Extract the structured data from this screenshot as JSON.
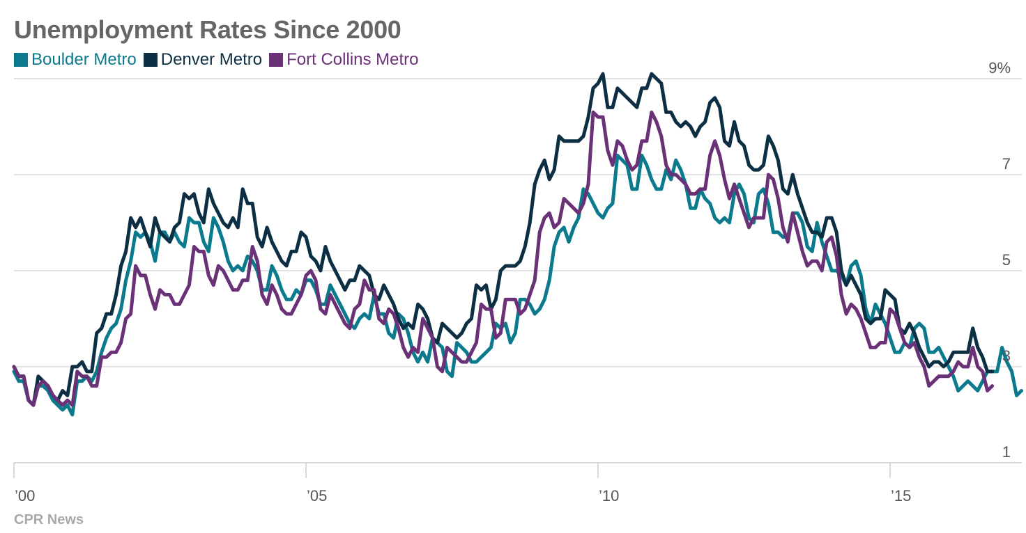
{
  "chart_data": {
    "type": "line",
    "title": "Unemployment Rates Since 2000",
    "source": "CPR News",
    "x_start": 2000.0,
    "x_step": 0.0833333,
    "xlim": [
      2000,
      2016.85
    ],
    "ylim": [
      1,
      9
    ],
    "y_ticks": [
      {
        "value": 9,
        "label": "9%"
      },
      {
        "value": 7,
        "label": "7"
      },
      {
        "value": 5,
        "label": "5"
      },
      {
        "value": 3,
        "label": "3"
      },
      {
        "value": 1,
        "label": "1"
      }
    ],
    "x_ticks": [
      {
        "value": 2000,
        "label": "’00"
      },
      {
        "value": 2005,
        "label": "’05"
      },
      {
        "value": 2010,
        "label": "’10"
      },
      {
        "value": 2015,
        "label": "’15"
      }
    ],
    "grid": true,
    "legend_position": "top-left",
    "series": [
      {
        "name": "Boulder Metro",
        "color": "#0a7a8c",
        "values": [
          2.9,
          2.7,
          2.7,
          2.3,
          2.2,
          2.6,
          2.6,
          2.5,
          2.3,
          2.2,
          2.1,
          2.2,
          2.0,
          2.7,
          2.7,
          2.8,
          2.7,
          2.9,
          3.3,
          3.6,
          3.8,
          3.9,
          4.2,
          4.8,
          5.2,
          5.8,
          5.7,
          5.8,
          5.6,
          5.2,
          5.8,
          5.8,
          5.6,
          5.8,
          5.6,
          5.5,
          6.1,
          6.0,
          6.0,
          5.6,
          5.4,
          6.1,
          5.9,
          5.6,
          5.2,
          5.0,
          5.1,
          5.0,
          5.3,
          5.2,
          5.0,
          4.6,
          4.6,
          5.1,
          4.9,
          4.6,
          4.4,
          4.4,
          4.6,
          4.5,
          4.8,
          4.8,
          4.6,
          4.3,
          4.3,
          4.7,
          4.5,
          4.3,
          4.1,
          3.9,
          3.8,
          4.0,
          4.1,
          4.0,
          4.5,
          4.1,
          4.1,
          3.7,
          3.6,
          4.1,
          4.0,
          3.7,
          3.3,
          3.1,
          3.3,
          3.1,
          3.6,
          3.5,
          3.4,
          2.9,
          2.8,
          3.5,
          3.4,
          3.3,
          3.1,
          3.1,
          3.2,
          3.3,
          3.4,
          3.9,
          3.8,
          3.9,
          3.5,
          3.7,
          4.4,
          4.4,
          4.3,
          4.1,
          4.2,
          4.4,
          4.8,
          5.5,
          5.8,
          5.9,
          5.6,
          5.9,
          6.1,
          6.7,
          6.6,
          6.4,
          6.2,
          6.1,
          6.3,
          6.4,
          7.4,
          7.3,
          7.2,
          6.7,
          6.7,
          7.4,
          7.2,
          6.9,
          6.7,
          6.7,
          7.1,
          6.9,
          7.3,
          7.1,
          6.8,
          6.3,
          6.3,
          6.7,
          6.5,
          6.4,
          6.1,
          6.0,
          6.1,
          6.0,
          6.6,
          6.8,
          6.6,
          6.1,
          6.0,
          6.6,
          6.7,
          6.4,
          5.8,
          5.8,
          5.7,
          5.7,
          6.2,
          6.2,
          6.0,
          5.5,
          5.4,
          6.0,
          5.6,
          5.3,
          5.0,
          5.0,
          4.9,
          4.7,
          5.1,
          5.2,
          4.9,
          4.2,
          3.9,
          4.3,
          4.1,
          3.9,
          3.6,
          3.3,
          3.3,
          3.5,
          3.4,
          3.8,
          3.9,
          3.8,
          3.3,
          3.3,
          3.4,
          3.2,
          3.0,
          2.8,
          2.5,
          2.6,
          2.7,
          2.6,
          2.5,
          2.7,
          2.9,
          2.9,
          2.9,
          3.4,
          3.1,
          2.9,
          2.4,
          2.5
        ]
      },
      {
        "name": "Denver Metro",
        "color": "#0d2f44",
        "values": [
          3.0,
          2.8,
          2.8,
          2.3,
          2.2,
          2.8,
          2.7,
          2.6,
          2.4,
          2.3,
          2.5,
          2.4,
          3.0,
          3.0,
          3.1,
          2.9,
          2.9,
          3.7,
          3.8,
          4.1,
          4.1,
          4.5,
          5.1,
          5.4,
          6.1,
          5.9,
          6.1,
          5.8,
          5.5,
          6.1,
          5.8,
          5.7,
          5.6,
          5.9,
          6.0,
          6.6,
          6.5,
          6.6,
          6.2,
          6.0,
          6.7,
          6.4,
          6.2,
          6.0,
          5.9,
          6.1,
          5.9,
          6.7,
          6.4,
          6.4,
          5.7,
          5.5,
          5.9,
          5.6,
          5.4,
          5.2,
          5.1,
          5.4,
          5.4,
          5.8,
          5.7,
          5.3,
          5.2,
          5.0,
          5.5,
          5.2,
          5.0,
          4.8,
          4.6,
          4.8,
          4.8,
          5.1,
          5.0,
          4.9,
          4.5,
          4.4,
          4.7,
          4.5,
          4.3,
          4.0,
          3.8,
          3.9,
          3.8,
          4.3,
          4.2,
          4.0,
          3.6,
          3.5,
          3.9,
          3.8,
          3.7,
          3.6,
          3.7,
          3.9,
          4.0,
          4.7,
          4.6,
          4.7,
          4.2,
          4.4,
          5.0,
          5.1,
          5.1,
          5.1,
          5.2,
          5.5,
          6.0,
          6.8,
          7.1,
          7.3,
          6.9,
          7.1,
          7.8,
          7.7,
          7.7,
          7.7,
          7.7,
          7.8,
          8.2,
          8.8,
          8.9,
          9.1,
          8.4,
          8.4,
          8.8,
          8.7,
          8.6,
          8.5,
          8.4,
          8.8,
          8.8,
          9.1,
          9.0,
          8.9,
          8.3,
          8.3,
          8.1,
          8.0,
          8.1,
          8.0,
          7.8,
          8.0,
          8.1,
          8.5,
          8.6,
          8.4,
          7.7,
          7.6,
          8.1,
          7.7,
          7.6,
          7.2,
          7.1,
          7.1,
          7.2,
          7.8,
          7.6,
          7.3,
          6.7,
          6.6,
          7.0,
          6.6,
          6.3,
          6.0,
          5.8,
          5.8,
          5.7,
          6.1,
          6.1,
          5.8,
          5.0,
          4.7,
          4.9,
          4.7,
          4.5,
          4.0,
          3.9,
          4.0,
          4.0,
          4.6,
          4.5,
          4.4,
          3.8,
          3.7,
          3.9,
          3.7,
          3.4,
          3.2,
          3.0,
          3.1,
          3.1,
          3.0,
          3.1,
          3.3,
          3.3,
          3.3,
          3.3,
          3.8,
          3.4,
          3.2,
          2.9,
          2.9
        ]
      },
      {
        "name": "Fort Collins Metro",
        "color": "#6b3177",
        "values": [
          3.0,
          2.8,
          2.8,
          2.3,
          2.2,
          2.6,
          2.7,
          2.6,
          2.4,
          2.3,
          2.2,
          2.3,
          2.2,
          2.9,
          2.8,
          2.8,
          2.6,
          2.6,
          3.2,
          3.2,
          3.3,
          3.3,
          3.5,
          4.0,
          4.1,
          5.1,
          4.9,
          4.9,
          4.5,
          4.2,
          4.6,
          4.5,
          4.5,
          4.3,
          4.3,
          4.5,
          4.7,
          5.5,
          5.4,
          5.4,
          4.9,
          4.7,
          5.1,
          5.0,
          4.8,
          4.6,
          4.6,
          4.8,
          4.8,
          5.5,
          5.2,
          4.5,
          4.3,
          4.7,
          4.5,
          4.2,
          4.1,
          4.1,
          4.3,
          4.5,
          4.9,
          5.0,
          4.8,
          4.2,
          4.1,
          4.5,
          4.3,
          4.1,
          3.9,
          3.8,
          4.2,
          4.3,
          4.8,
          4.6,
          4.6,
          4.0,
          3.9,
          4.2,
          4.1,
          3.8,
          3.4,
          3.2,
          3.4,
          3.3,
          4.0,
          3.8,
          3.6,
          3.0,
          2.9,
          3.4,
          3.3,
          3.2,
          3.1,
          3.1,
          3.3,
          3.5,
          4.3,
          4.2,
          4.2,
          3.6,
          3.7,
          4.4,
          4.4,
          4.4,
          4.1,
          4.2,
          4.5,
          4.8,
          5.8,
          6.1,
          6.2,
          5.9,
          6.0,
          6.5,
          6.4,
          6.3,
          6.2,
          6.4,
          6.8,
          8.3,
          8.2,
          8.2,
          7.5,
          7.2,
          7.7,
          7.6,
          7.3,
          7.1,
          7.2,
          7.7,
          7.7,
          8.3,
          8.1,
          7.8,
          7.2,
          7.0,
          7.0,
          6.9,
          6.8,
          6.6,
          6.6,
          6.7,
          6.7,
          7.4,
          7.7,
          7.4,
          6.9,
          6.5,
          6.8,
          6.5,
          6.2,
          5.9,
          6.1,
          6.1,
          6.1,
          7.0,
          6.9,
          6.5,
          5.9,
          5.6,
          6.2,
          5.8,
          5.4,
          5.1,
          5.2,
          5.2,
          5.0,
          5.6,
          5.7,
          5.3,
          4.5,
          4.1,
          4.3,
          4.2,
          4.0,
          3.7,
          3.4,
          3.4,
          3.5,
          3.5,
          4.2,
          4.1,
          3.8,
          3.5,
          3.4,
          3.5,
          3.2,
          3.0,
          2.6,
          2.7,
          2.8,
          2.8,
          2.8,
          2.9,
          3.1,
          3.0,
          3.0,
          3.4,
          3.0,
          2.9,
          2.5,
          2.6
        ]
      }
    ]
  }
}
